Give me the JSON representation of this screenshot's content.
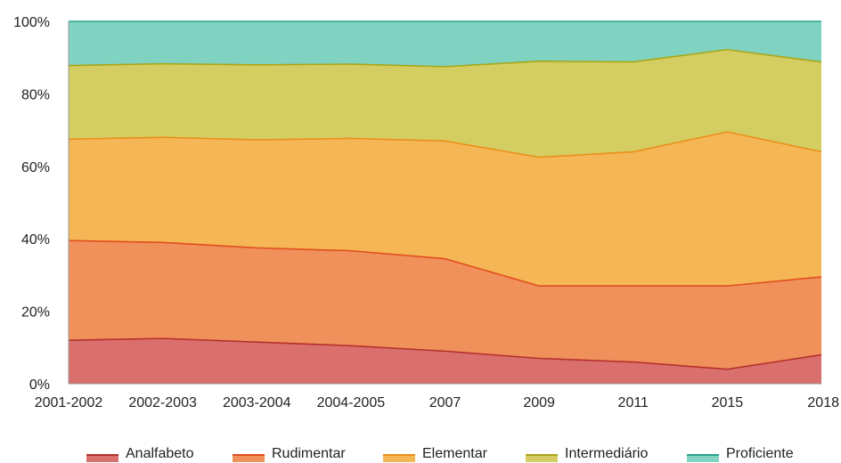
{
  "chart_data": {
    "type": "area",
    "stacked": true,
    "normalized": true,
    "title": "",
    "xlabel": "",
    "ylabel": "",
    "categories": [
      "2001-2002",
      "2002-2003",
      "2003-2004",
      "2004-2005",
      "2007",
      "2009",
      "2011",
      "2015",
      "2018"
    ],
    "y_ticks": [
      "0%",
      "20%",
      "40%",
      "60%",
      "80%",
      "100%"
    ],
    "ylim": [
      0,
      100
    ],
    "grid": true,
    "legend_position": "bottom",
    "series": [
      {
        "name": "Analfabeto",
        "color": "#d9706d",
        "line_color": "#b5312d",
        "values": [
          12,
          12.5,
          11.5,
          10.5,
          9,
          7,
          6,
          4,
          8
        ]
      },
      {
        "name": "Rudimentar",
        "color": "#f0905a",
        "line_color": "#e04e1e",
        "values": [
          27.5,
          26.5,
          26,
          26.2,
          25.5,
          20,
          21,
          23,
          21.5
        ]
      },
      {
        "name": "Elementar",
        "color": "#f5b755",
        "line_color": "#eb8e1a",
        "values": [
          28,
          29,
          29.8,
          31,
          32.5,
          35.5,
          37,
          42.5,
          34.5
        ]
      },
      {
        "name": "Intermediário",
        "color": "#d4ce62",
        "line_color": "#a9a615",
        "values": [
          20.3,
          20.3,
          20.7,
          20.5,
          20.5,
          26.5,
          24.8,
          22.7,
          24.8
        ]
      },
      {
        "name": "Proficiente",
        "color": "#80d3c1",
        "line_color": "#2aa58c",
        "values": [
          12.2,
          11.7,
          12,
          11.8,
          12.5,
          11,
          11.2,
          7.8,
          11.2
        ]
      }
    ]
  }
}
